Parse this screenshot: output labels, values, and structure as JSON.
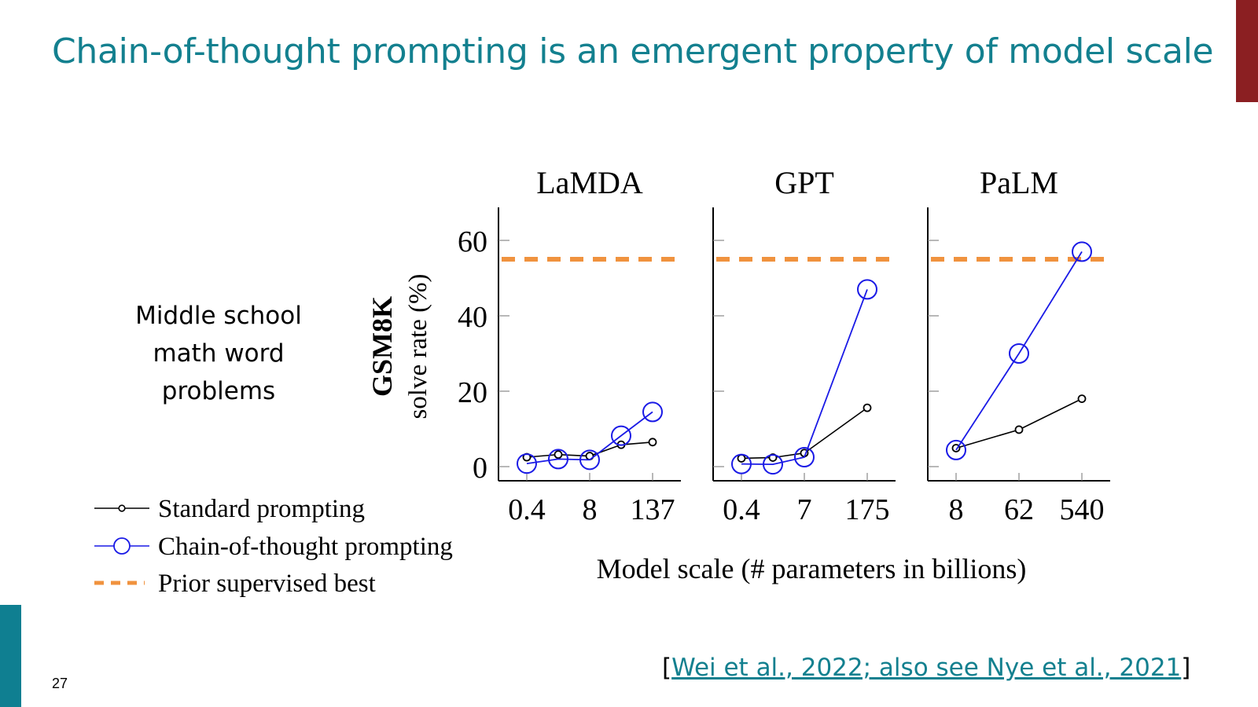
{
  "slide": {
    "title": "Chain-of-thought prompting is an emergent property of model scale",
    "subtitle": "Middle school math word problems",
    "page_number": "27",
    "citation": {
      "open": "[",
      "link_text": "Wei et al., 2022; also see Nye et al., 2021",
      "close": "]"
    },
    "colors": {
      "title": "#13808f",
      "corner_bar": "#8b1f22",
      "side_bar": "#0f7f91"
    }
  },
  "chart_data": {
    "type": "line",
    "ylabel_line1": "GSM8K",
    "ylabel_line2": "solve rate (%)",
    "xlabel": "Model scale (# parameters in billions)",
    "ylim": [
      0,
      65
    ],
    "yticks": [
      0,
      20,
      40,
      60
    ],
    "grid": false,
    "legend_position": "bottom-left",
    "prior_supervised_best": 55,
    "legend": [
      {
        "label": "Standard prompting",
        "key": "standard",
        "color": "#000000"
      },
      {
        "label": "Chain-of-thought prompting",
        "key": "cot",
        "color": "#1a1ae6"
      },
      {
        "label": "Prior supervised best",
        "key": "prior",
        "color": "#f0923e"
      }
    ],
    "panels": [
      {
        "title": "LaMDA",
        "x_ticks": [
          "0.4",
          "8",
          "137"
        ],
        "tick_positions": [
          0,
          2,
          4
        ],
        "n_points": 5,
        "series": [
          {
            "key": "standard",
            "values": [
              2.5,
              3.2,
              2.8,
              5.8,
              6.5
            ]
          },
          {
            "key": "cot",
            "values": [
              0.8,
              2.0,
              1.8,
              8.2,
              14.5
            ]
          }
        ]
      },
      {
        "title": "GPT",
        "x_ticks": [
          "0.4",
          "7",
          "175"
        ],
        "tick_positions": [
          0,
          2,
          4
        ],
        "n_points": 4,
        "x_positions": [
          0,
          1,
          2,
          4
        ],
        "series": [
          {
            "key": "standard",
            "values": [
              2.2,
              2.4,
              3.6,
              15.6
            ]
          },
          {
            "key": "cot",
            "values": [
              0.7,
              0.6,
              2.5,
              47.0
            ]
          }
        ]
      },
      {
        "title": "PaLM",
        "x_ticks": [
          "8",
          "62",
          "540"
        ],
        "tick_positions": [
          0,
          1,
          2
        ],
        "n_points": 3,
        "series": [
          {
            "key": "standard",
            "values": [
              4.9,
              9.8,
              18.0
            ]
          },
          {
            "key": "cot",
            "values": [
              4.4,
              30.0,
              57.0
            ]
          }
        ]
      }
    ]
  }
}
